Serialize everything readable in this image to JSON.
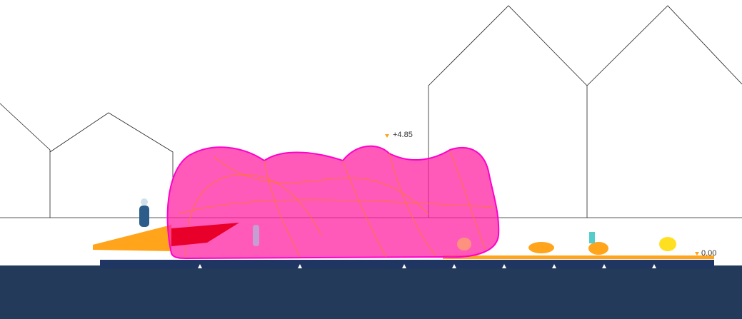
{
  "elevation_marks": [
    {
      "label": "+4.85"
    },
    {
      "label": "0.00"
    }
  ]
}
